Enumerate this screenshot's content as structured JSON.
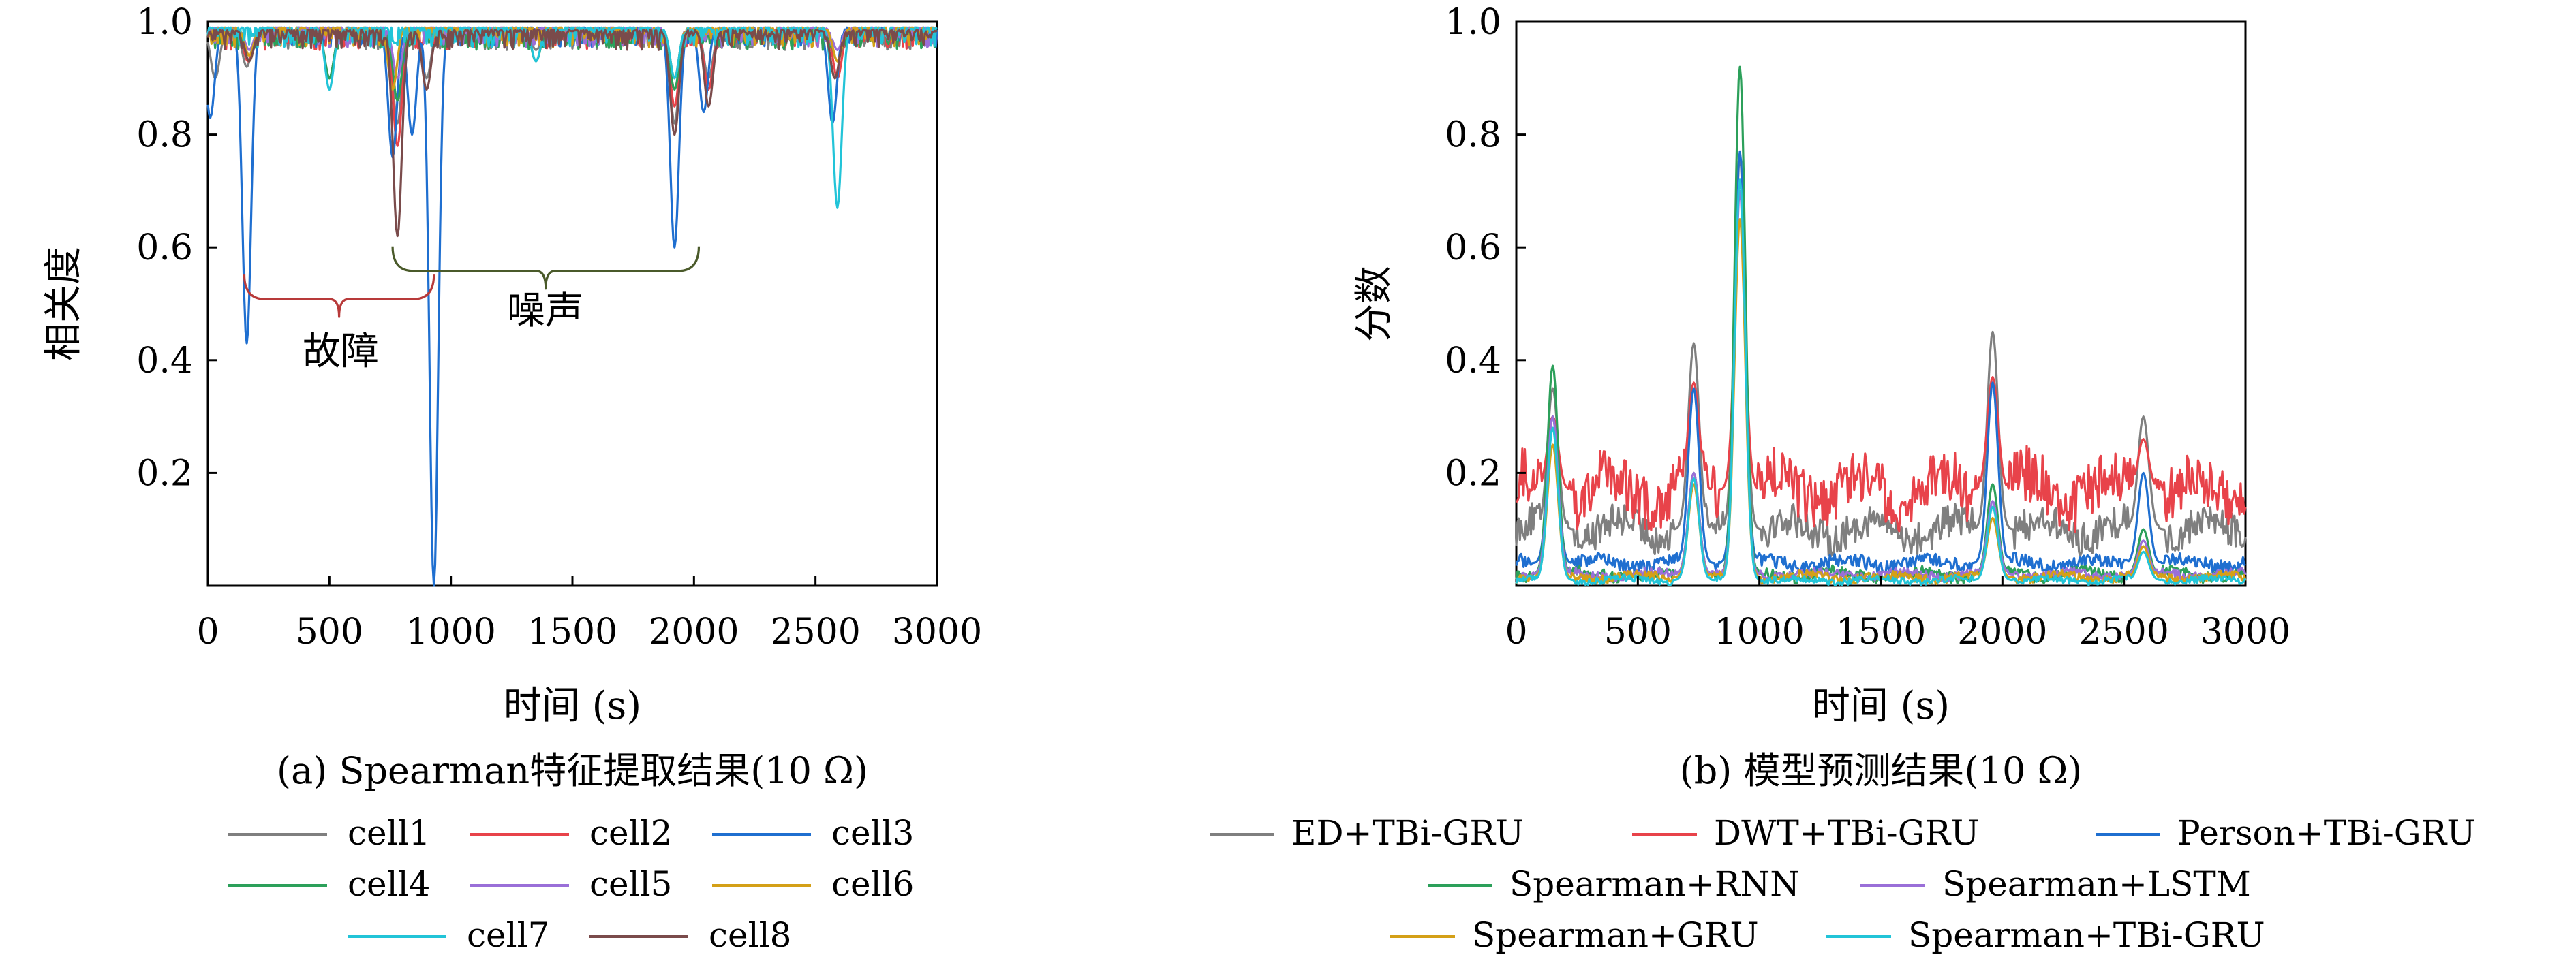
{
  "chart_data": [
    {
      "type": "line",
      "caption": "(a) Spearman特征提取结果(10 Ω)",
      "xlabel": "时间 (s)",
      "ylabel": "相关度",
      "xlim": [
        0,
        3000
      ],
      "ylim": [
        0,
        1.0
      ],
      "xticks": [
        "0",
        "500",
        "1000",
        "1500",
        "2000",
        "2500",
        "3000"
      ],
      "yticks": [
        "0.2",
        "0.4",
        "0.6",
        "0.8",
        "1.0"
      ],
      "annotations": [
        {
          "label": "故障",
          "x_range": [
            150,
            930
          ],
          "y": 0.53
        },
        {
          "label": "噪声",
          "x_range": [
            760,
            2020
          ],
          "y": 0.58
        }
      ],
      "series": [
        {
          "name": "cell1",
          "color": "#7f7f7f",
          "base": 0.985,
          "dips": [
            [
              30,
              0.9
            ],
            [
              160,
              0.92
            ],
            [
              500,
              0.9
            ],
            [
              780,
              0.82
            ],
            [
              900,
              0.9
            ],
            [
              1350,
              0.95
            ],
            [
              1920,
              0.82
            ],
            [
              2060,
              0.9
            ],
            [
              2580,
              0.9
            ]
          ]
        },
        {
          "name": "cell2",
          "color": "#e8434a",
          "base": 0.985,
          "dips": [
            [
              165,
              0.93
            ],
            [
              780,
              0.78
            ],
            [
              1920,
              0.85
            ],
            [
              2060,
              0.88
            ],
            [
              2590,
              0.9
            ]
          ]
        },
        {
          "name": "cell3",
          "color": "#1f6fd0",
          "base": 0.99,
          "dips": [
            [
              10,
              0.83
            ],
            [
              160,
              0.43
            ],
            [
              760,
              0.76
            ],
            [
              840,
              0.8
            ],
            [
              930,
              0.0
            ],
            [
              1920,
              0.6
            ],
            [
              2040,
              0.84
            ],
            [
              2570,
              0.82
            ]
          ]
        },
        {
          "name": "cell4",
          "color": "#2ca05a",
          "base": 0.985,
          "dips": [
            [
              170,
              0.93
            ],
            [
              500,
              0.9
            ],
            [
              780,
              0.86
            ],
            [
              1350,
              0.93
            ],
            [
              1920,
              0.88
            ],
            [
              2590,
              0.93
            ]
          ]
        },
        {
          "name": "cell5",
          "color": "#9a6fd8",
          "base": 0.99,
          "dips": [
            [
              170,
              0.95
            ],
            [
              780,
              0.9
            ],
            [
              1920,
              0.9
            ],
            [
              2590,
              0.95
            ]
          ]
        },
        {
          "name": "cell6",
          "color": "#d4a017",
          "base": 0.99,
          "dips": [
            [
              170,
              0.94
            ],
            [
              760,
              0.88
            ],
            [
              1920,
              0.9
            ],
            [
              2590,
              0.93
            ]
          ]
        },
        {
          "name": "cell7",
          "color": "#22c4d8",
          "base": 0.99,
          "dips": [
            [
              500,
              0.88
            ],
            [
              1350,
              0.93
            ],
            [
              1920,
              0.9
            ],
            [
              2590,
              0.67
            ]
          ]
        },
        {
          "name": "cell8",
          "color": "#7a4b4b",
          "base": 0.985,
          "dips": [
            [
              170,
              0.93
            ],
            [
              780,
              0.62
            ],
            [
              900,
              0.88
            ],
            [
              1920,
              0.8
            ],
            [
              2060,
              0.85
            ],
            [
              2580,
              0.9
            ]
          ]
        }
      ]
    },
    {
      "type": "line",
      "caption": "(b) 模型预测结果(10 Ω)",
      "xlabel": "时间 (s)",
      "ylabel": "分数",
      "xlim": [
        0,
        3000
      ],
      "ylim": [
        0,
        1.0
      ],
      "xticks": [
        "0",
        "500",
        "1000",
        "1500",
        "2000",
        "2500",
        "3000"
      ],
      "yticks": [
        "0.2",
        "0.4",
        "0.6",
        "0.8",
        "1.0"
      ],
      "series": [
        {
          "name": "ED+TBi-GRU",
          "color": "#7f7f7f",
          "base": 0.1,
          "noise": 0.03,
          "peaks": [
            [
              150,
              0.35
            ],
            [
              730,
              0.43
            ],
            [
              920,
              0.76
            ],
            [
              1960,
              0.45
            ],
            [
              2580,
              0.3
            ]
          ]
        },
        {
          "name": "DWT+TBi-GRU",
          "color": "#e8434a",
          "base": 0.17,
          "noise": 0.05,
          "peaks": [
            [
              150,
              0.3
            ],
            [
              730,
              0.36
            ],
            [
              920,
              0.65
            ],
            [
              1960,
              0.37
            ],
            [
              2580,
              0.26
            ]
          ]
        },
        {
          "name": "Person+TBi-GRU",
          "color": "#1f6fd0",
          "base": 0.04,
          "noise": 0.012,
          "peaks": [
            [
              150,
              0.3
            ],
            [
              730,
              0.35
            ],
            [
              920,
              0.77
            ],
            [
              1960,
              0.36
            ],
            [
              2580,
              0.2
            ]
          ]
        },
        {
          "name": "Spearman+RNN",
          "color": "#2ca05a",
          "base": 0.02,
          "noise": 0.01,
          "peaks": [
            [
              150,
              0.39
            ],
            [
              730,
              0.2
            ],
            [
              920,
              0.92
            ],
            [
              1960,
              0.18
            ],
            [
              2580,
              0.1
            ]
          ]
        },
        {
          "name": "Spearman+LSTM",
          "color": "#9a6fd8",
          "base": 0.02,
          "noise": 0.008,
          "peaks": [
            [
              150,
              0.3
            ],
            [
              730,
              0.2
            ],
            [
              920,
              0.7
            ],
            [
              1960,
              0.15
            ],
            [
              2580,
              0.08
            ]
          ]
        },
        {
          "name": "Spearman+GRU",
          "color": "#d4a017",
          "base": 0.015,
          "noise": 0.008,
          "peaks": [
            [
              150,
              0.25
            ],
            [
              730,
              0.18
            ],
            [
              920,
              0.65
            ],
            [
              1960,
              0.12
            ],
            [
              2580,
              0.07
            ]
          ]
        },
        {
          "name": "Spearman+TBi-GRU",
          "color": "#22c4d8",
          "base": 0.01,
          "noise": 0.006,
          "peaks": [
            [
              150,
              0.28
            ],
            [
              730,
              0.19
            ],
            [
              920,
              0.72
            ],
            [
              1960,
              0.14
            ],
            [
              2580,
              0.06
            ]
          ]
        }
      ]
    }
  ]
}
